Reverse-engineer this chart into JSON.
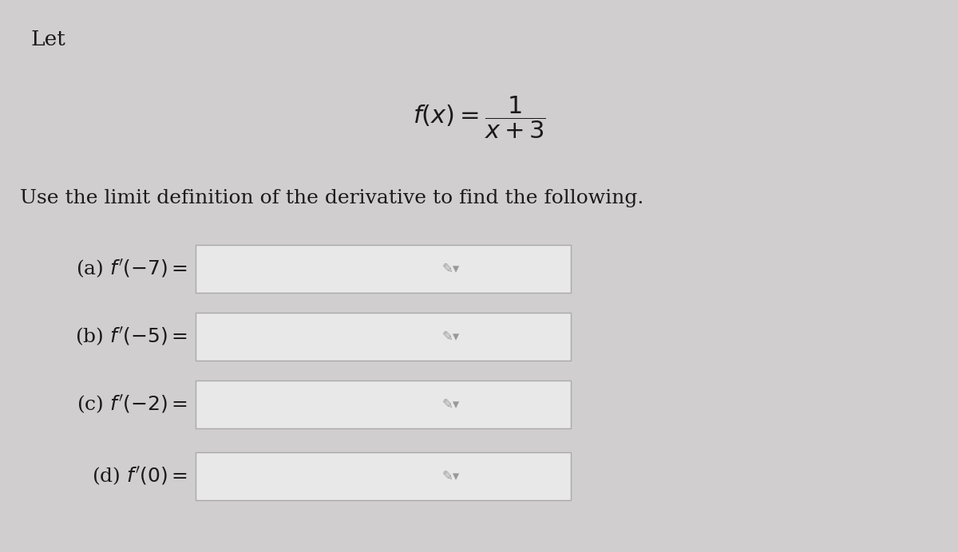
{
  "background_color": "#d0cece",
  "title_text": "Let",
  "instruction_text": "Use the limit definition of the derivative to find the following.",
  "part_labels": [
    "(a) f(-7) =",
    "(b) f(-5) =",
    "(c) f(-2) =",
    "(d) f(0) ="
  ],
  "box_fill_color": "#e8e8e8",
  "box_edge_color": "#aaaaaa",
  "text_color": "#1a1a1a",
  "title_fontsize": 19,
  "formula_fontsize": 22,
  "instruction_fontsize": 18,
  "label_fontsize": 18,
  "icon_color": "#999999"
}
